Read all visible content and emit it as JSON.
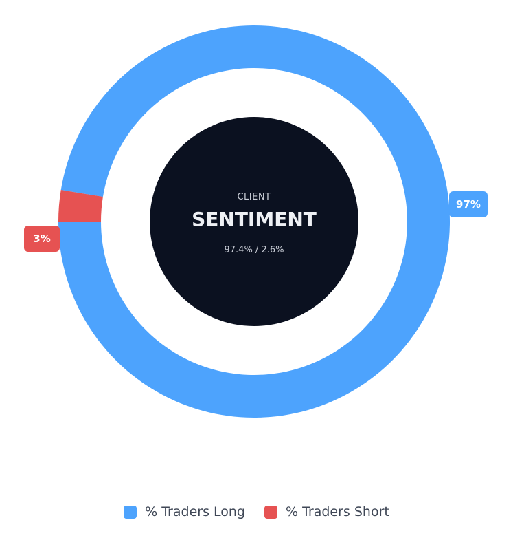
{
  "chart_data": {
    "type": "pie",
    "variant": "doughnut",
    "center": {
      "kicker": "CLIENT",
      "title": "SENTIMENT",
      "subtitle": "97.4% / 2.6%"
    },
    "slices": [
      {
        "name": "% Traders Long",
        "value": 97.4,
        "label": "97%",
        "color": "#4da3fd"
      },
      {
        "name": "% Traders Short",
        "value": 2.6,
        "label": "3%",
        "color": "#e65252"
      }
    ],
    "legend_position": "bottom",
    "center_fill": "#0b1120"
  }
}
